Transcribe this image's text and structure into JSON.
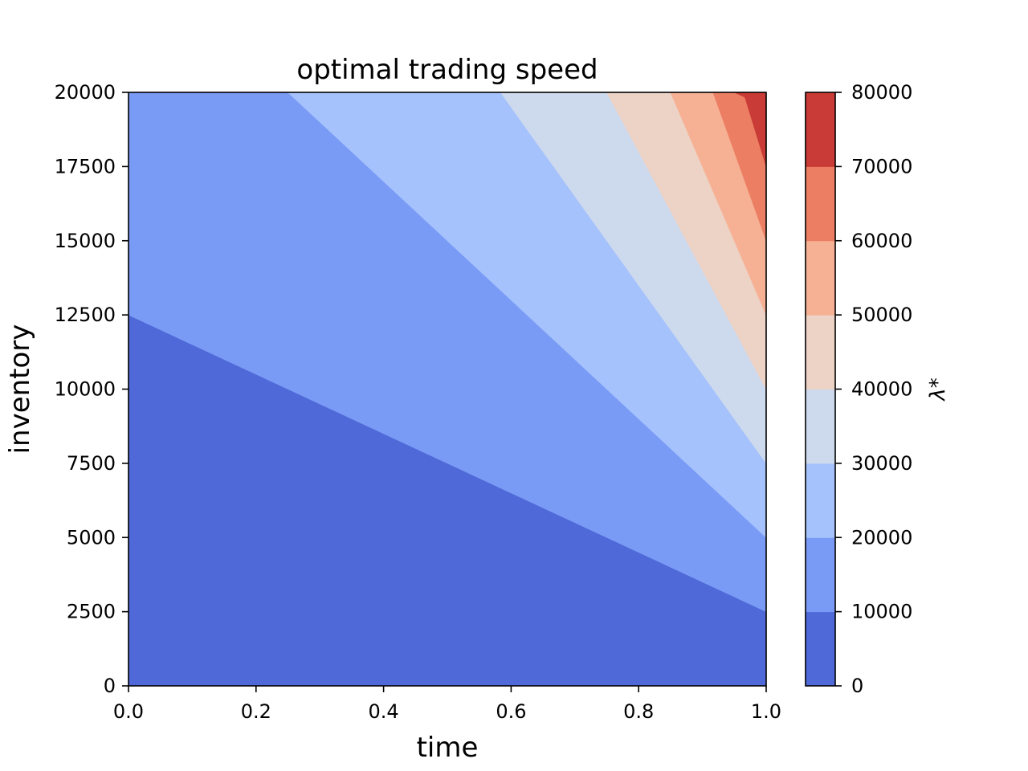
{
  "chart_data": {
    "type": "contourf",
    "title": "optimal trading speed",
    "xlabel": "time",
    "ylabel": "inventory",
    "xlim": [
      0.0,
      1.0
    ],
    "ylim": [
      0,
      20000
    ],
    "x_ticks": [
      "0.0",
      "0.2",
      "0.4",
      "0.6",
      "0.8",
      "1.0"
    ],
    "y_ticks": [
      "0",
      "2500",
      "5000",
      "7500",
      "10000",
      "12500",
      "15000",
      "17500",
      "20000"
    ],
    "function": "lambda* = inventory / (1.25 - time)",
    "levels": [
      0,
      10000,
      20000,
      30000,
      40000,
      50000,
      60000,
      70000,
      80000
    ],
    "level_colors": [
      "#4f6ad8",
      "#7a9bf5",
      "#a5c2fd",
      "#cdd9ec",
      "#edd2c6",
      "#f6b194",
      "#ec7f63",
      "#c93b36"
    ],
    "colorbar": {
      "label": "λ*",
      "ticks": [
        "0",
        "10000",
        "20000",
        "30000",
        "40000",
        "50000",
        "60000",
        "70000",
        "80000"
      ]
    },
    "grid": false
  }
}
